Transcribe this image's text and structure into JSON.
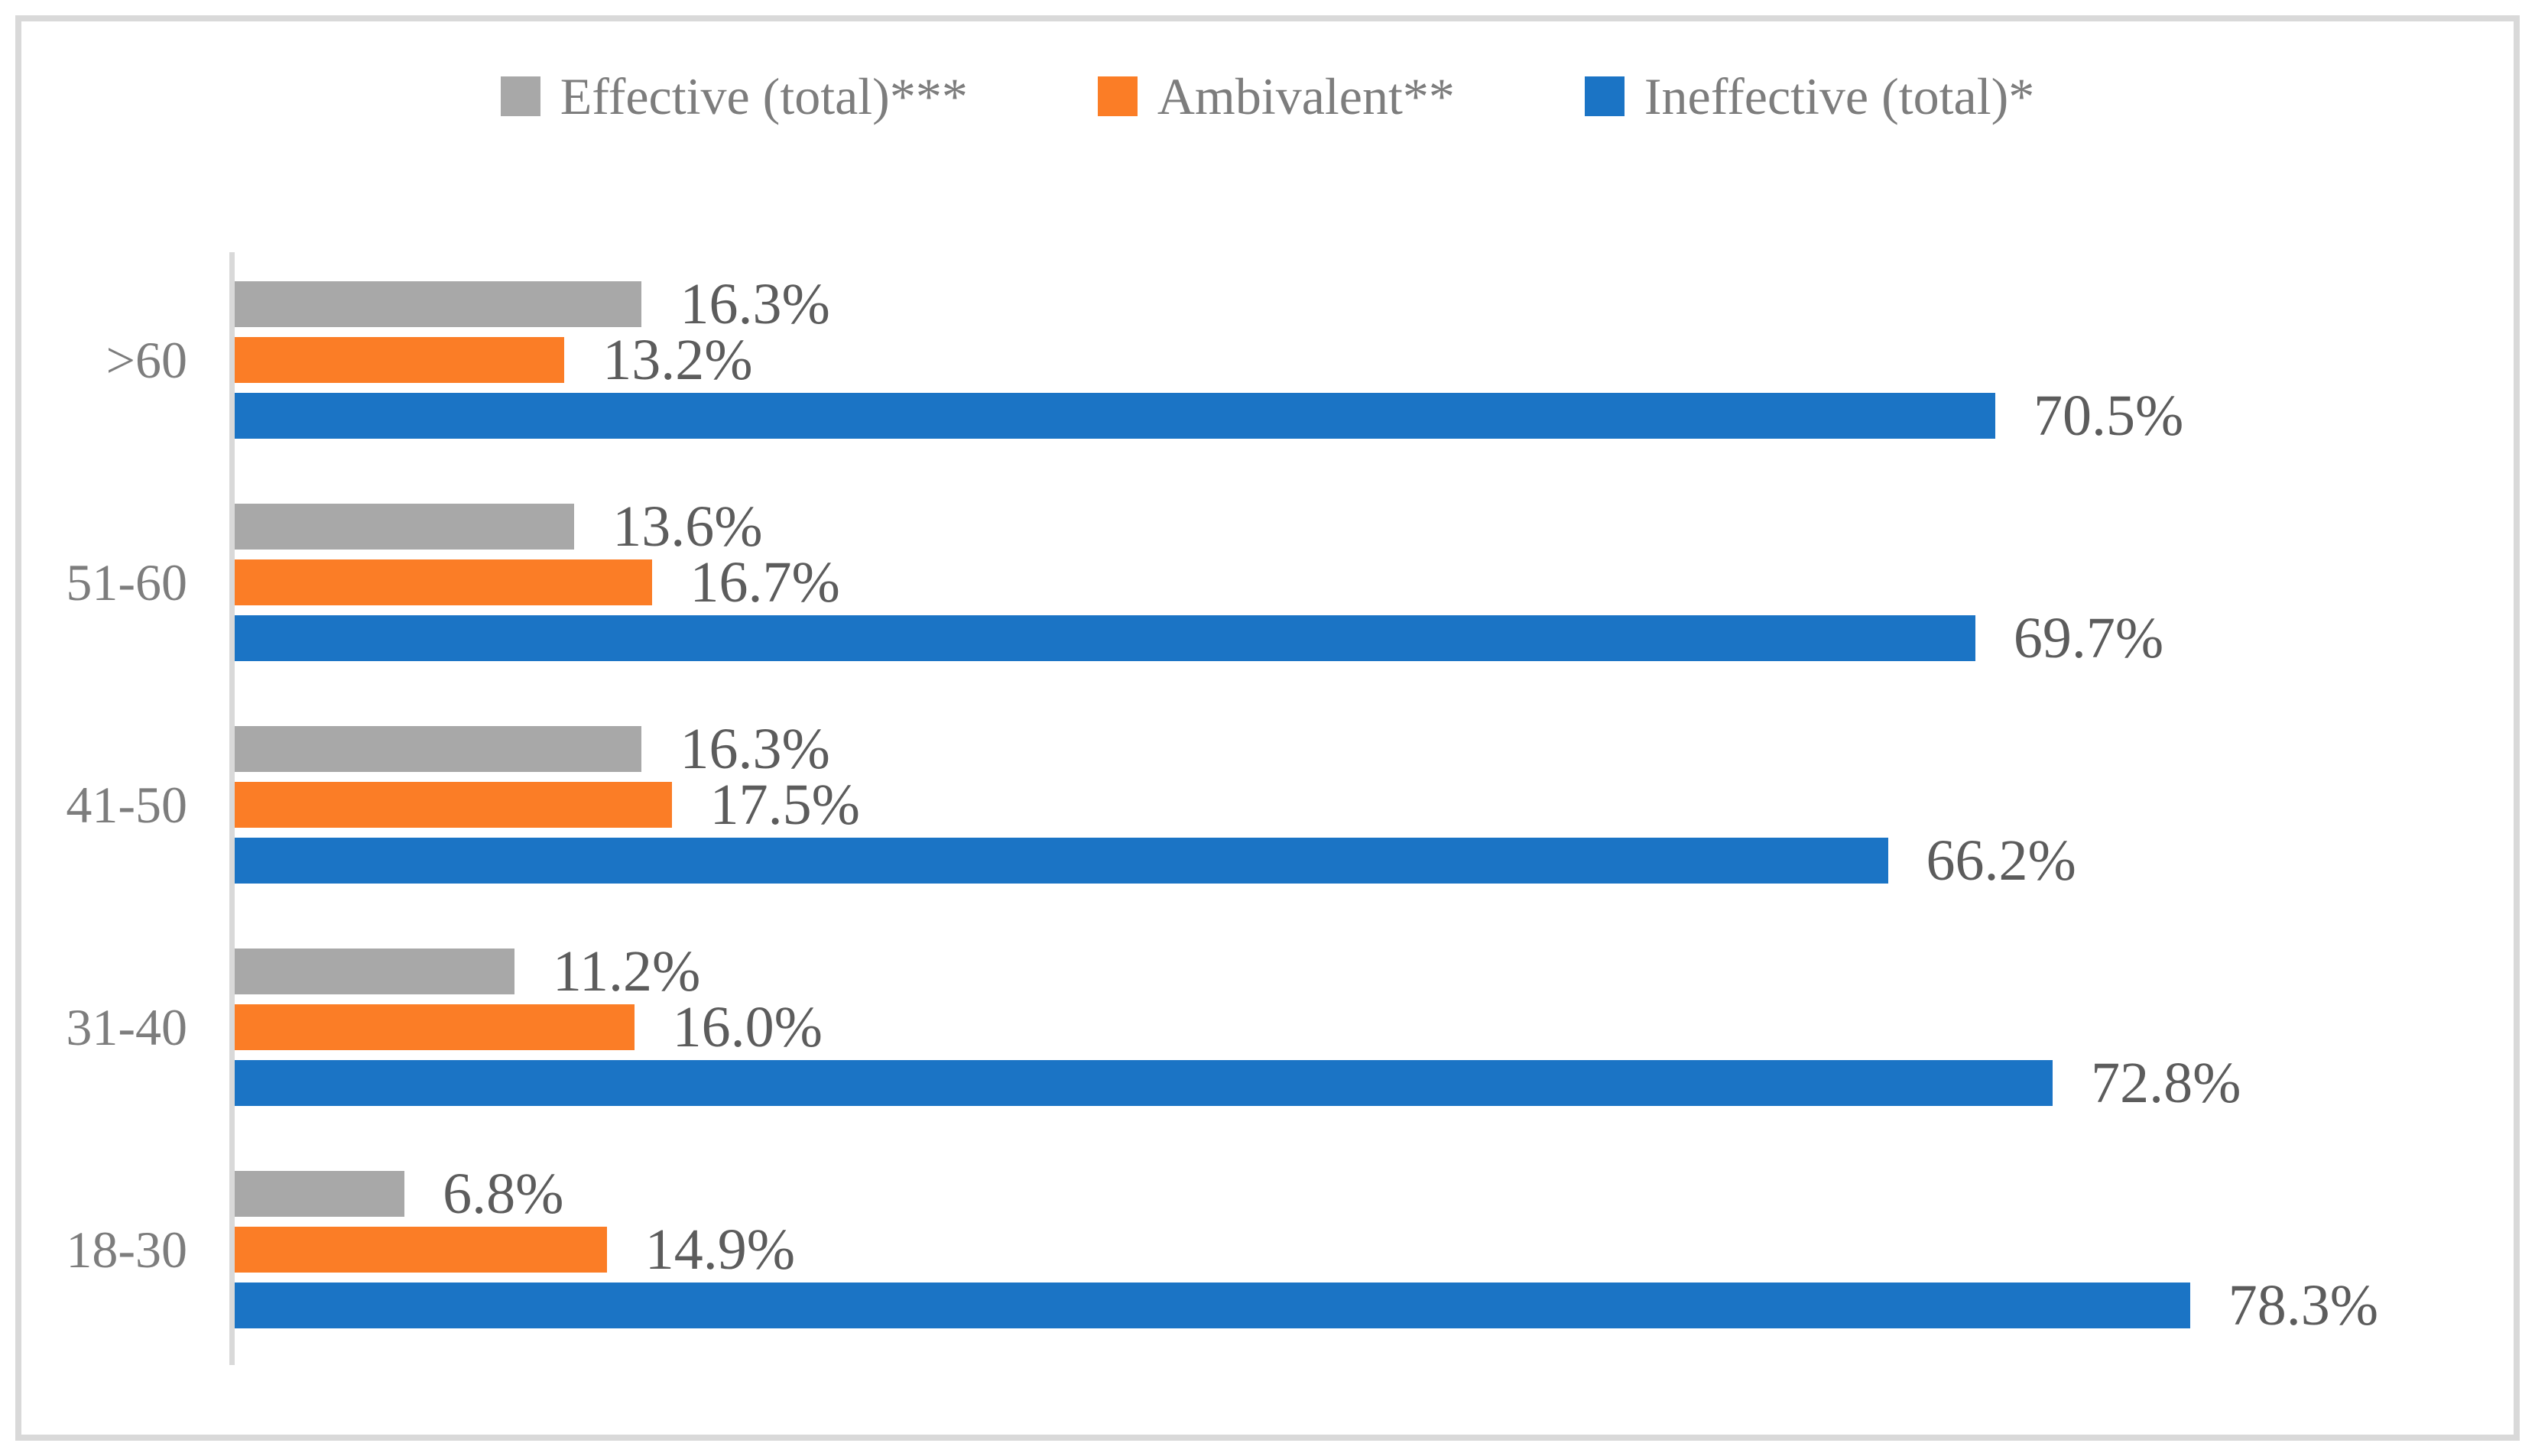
{
  "figure": {
    "background": "#FFFFFF",
    "border_color": "#D9D9D9",
    "axis_line_color": "#D9D9D9",
    "value_label_color": "#5C5C5C",
    "category_label_color": "#7D7D7D",
    "legend_text_color": "#7D7D7D"
  },
  "chart_data": {
    "type": "bar",
    "orientation": "horizontal",
    "title": "",
    "xlabel": "",
    "ylabel": "",
    "xlim": [
      0,
      90
    ],
    "grid": false,
    "data_labels": true,
    "legend_position": "top",
    "categories": [
      ">60",
      "51-60",
      "41-50",
      "31-40",
      "18-30"
    ],
    "series": [
      {
        "name": "Effective (total)***",
        "color": "#A8A8A8",
        "values": [
          16.3,
          13.6,
          16.3,
          11.2,
          6.8
        ],
        "labels": [
          "16.3%",
          "13.6%",
          "16.3%",
          "11.2%",
          "6.8%"
        ]
      },
      {
        "name": "Ambivalent**",
        "color": "#FB7D26",
        "values": [
          13.2,
          16.7,
          17.5,
          16.0,
          14.9
        ],
        "labels": [
          "13.2%",
          "16.7%",
          "17.5%",
          "16.0%",
          "14.9%"
        ]
      },
      {
        "name": "Ineffective (total)*",
        "color": "#1B74C5",
        "values": [
          70.5,
          69.7,
          66.2,
          72.8,
          78.3
        ],
        "labels": [
          "70.5%",
          "69.7%",
          "66.2%",
          "72.8%",
          "78.3%"
        ]
      }
    ]
  }
}
